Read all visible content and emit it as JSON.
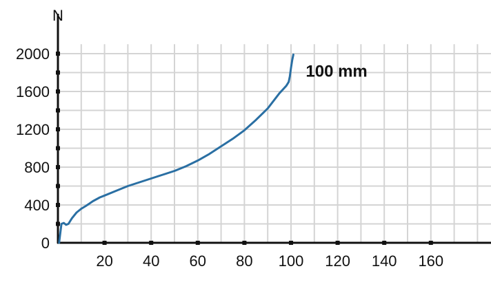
{
  "chart_data": {
    "type": "line",
    "title": "",
    "xlabel": "",
    "ylabel": "N",
    "xlim": [
      0,
      180
    ],
    "ylim": [
      0,
      2100
    ],
    "x_ticks": [
      20,
      40,
      60,
      80,
      100,
      120,
      140,
      160
    ],
    "x_tick_labels": [
      "20",
      "40",
      "60",
      "80",
      "100",
      "120",
      "140",
      "160"
    ],
    "y_ticks": [
      0,
      400,
      800,
      1200,
      1600,
      2000
    ],
    "y_tick_labels": [
      "0",
      "400",
      "800",
      "1200",
      "1600",
      "2000"
    ],
    "grid": true,
    "series": [
      {
        "name": "",
        "color": "#2a6fa3",
        "x": [
          0.5,
          1.5,
          2.5,
          3.5,
          4.5,
          6,
          8,
          10,
          12,
          15,
          18,
          20,
          25,
          30,
          35,
          40,
          45,
          50,
          55,
          60,
          65,
          70,
          75,
          80,
          85,
          90,
          95,
          98,
          99,
          99.5,
          100,
          100.5,
          101
        ],
        "y": [
          0,
          200,
          210,
          190,
          200,
          260,
          320,
          360,
          390,
          440,
          480,
          500,
          550,
          600,
          640,
          680,
          720,
          760,
          810,
          870,
          940,
          1020,
          1100,
          1190,
          1300,
          1420,
          1580,
          1660,
          1700,
          1760,
          1850,
          1930,
          1990
        ]
      }
    ],
    "annotations": [
      {
        "text": "100 mm",
        "x": 101,
        "y": 1990
      }
    ]
  }
}
